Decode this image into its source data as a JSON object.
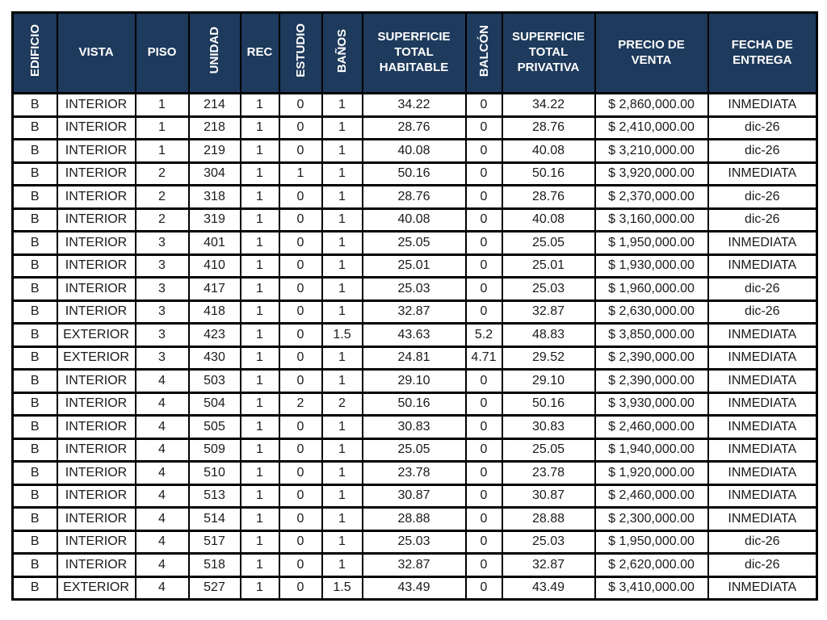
{
  "colors": {
    "header_background": "#1e3a5c",
    "header_text": "#ffffff",
    "grid_border": "#000000",
    "cell_background": "#ffffff",
    "cell_text": "#1a1a1a"
  },
  "table": {
    "columns": [
      {
        "id": "edificio",
        "label": "EDIFICIO",
        "vertical": true
      },
      {
        "id": "vista",
        "label": "VISTA",
        "vertical": false
      },
      {
        "id": "piso",
        "label": "PISO",
        "vertical": false
      },
      {
        "id": "unidad",
        "label": "UNIDAD",
        "vertical": true
      },
      {
        "id": "rec",
        "label": "REC",
        "vertical": false
      },
      {
        "id": "estudio",
        "label": "ESTUDIO",
        "vertical": true
      },
      {
        "id": "banos",
        "label": "BAÑOS",
        "vertical": true
      },
      {
        "id": "superficie-total-habitable",
        "label": "SUPERFICIE TOTAL HABITABLE",
        "vertical": false
      },
      {
        "id": "balcon",
        "label": "BALCÓN",
        "vertical": true
      },
      {
        "id": "superficie-total-privativa",
        "label": "SUPERFICIE TOTAL PRIVATIVA",
        "vertical": false
      },
      {
        "id": "precio-de-venta",
        "label": "PRECIO DE VENTA",
        "vertical": false
      },
      {
        "id": "fecha-de-entrega",
        "label": "FECHA DE ENTREGA",
        "vertical": false
      }
    ],
    "rows": [
      [
        "B",
        "INTERIOR",
        "1",
        "214",
        "1",
        "0",
        "1",
        "34.22",
        "0",
        "34.22",
        "$ 2,860,000.00",
        "INMEDIATA"
      ],
      [
        "B",
        "INTERIOR",
        "1",
        "218",
        "1",
        "0",
        "1",
        "28.76",
        "0",
        "28.76",
        "$ 2,410,000.00",
        "dic-26"
      ],
      [
        "B",
        "INTERIOR",
        "1",
        "219",
        "1",
        "0",
        "1",
        "40.08",
        "0",
        "40.08",
        "$ 3,210,000.00",
        "dic-26"
      ],
      [
        "B",
        "INTERIOR",
        "2",
        "304",
        "1",
        "1",
        "1",
        "50.16",
        "0",
        "50.16",
        "$ 3,920,000.00",
        "INMEDIATA"
      ],
      [
        "B",
        "INTERIOR",
        "2",
        "318",
        "1",
        "0",
        "1",
        "28.76",
        "0",
        "28.76",
        "$ 2,370,000.00",
        "dic-26"
      ],
      [
        "B",
        "INTERIOR",
        "2",
        "319",
        "1",
        "0",
        "1",
        "40.08",
        "0",
        "40.08",
        "$ 3,160,000.00",
        "dic-26"
      ],
      [
        "B",
        "INTERIOR",
        "3",
        "401",
        "1",
        "0",
        "1",
        "25.05",
        "0",
        "25.05",
        "$ 1,950,000.00",
        "INMEDIATA"
      ],
      [
        "B",
        "INTERIOR",
        "3",
        "410",
        "1",
        "0",
        "1",
        "25.01",
        "0",
        "25.01",
        "$ 1,930,000.00",
        "INMEDIATA"
      ],
      [
        "B",
        "INTERIOR",
        "3",
        "417",
        "1",
        "0",
        "1",
        "25.03",
        "0",
        "25.03",
        "$ 1,960,000.00",
        "dic-26"
      ],
      [
        "B",
        "INTERIOR",
        "3",
        "418",
        "1",
        "0",
        "1",
        "32.87",
        "0",
        "32.87",
        "$ 2,630,000.00",
        "dic-26"
      ],
      [
        "B",
        "EXTERIOR",
        "3",
        "423",
        "1",
        "0",
        "1.5",
        "43.63",
        "5.2",
        "48.83",
        "$ 3,850,000.00",
        "INMEDIATA"
      ],
      [
        "B",
        "EXTERIOR",
        "3",
        "430",
        "1",
        "0",
        "1",
        "24.81",
        "4.71",
        "29.52",
        "$ 2,390,000.00",
        "INMEDIATA"
      ],
      [
        "B",
        "INTERIOR",
        "4",
        "503",
        "1",
        "0",
        "1",
        "29.10",
        "0",
        "29.10",
        "$ 2,390,000.00",
        "INMEDIATA"
      ],
      [
        "B",
        "INTERIOR",
        "4",
        "504",
        "1",
        "2",
        "2",
        "50.16",
        "0",
        "50.16",
        "$ 3,930,000.00",
        "INMEDIATA"
      ],
      [
        "B",
        "INTERIOR",
        "4",
        "505",
        "1",
        "0",
        "1",
        "30.83",
        "0",
        "30.83",
        "$ 2,460,000.00",
        "INMEDIATA"
      ],
      [
        "B",
        "INTERIOR",
        "4",
        "509",
        "1",
        "0",
        "1",
        "25.05",
        "0",
        "25.05",
        "$ 1,940,000.00",
        "INMEDIATA"
      ],
      [
        "B",
        "INTERIOR",
        "4",
        "510",
        "1",
        "0",
        "1",
        "23.78",
        "0",
        "23.78",
        "$ 1,920,000.00",
        "INMEDIATA"
      ],
      [
        "B",
        "INTERIOR",
        "4",
        "513",
        "1",
        "0",
        "1",
        "30.87",
        "0",
        "30.87",
        "$ 2,460,000.00",
        "INMEDIATA"
      ],
      [
        "B",
        "INTERIOR",
        "4",
        "514",
        "1",
        "0",
        "1",
        "28.88",
        "0",
        "28.88",
        "$ 2,300,000.00",
        "INMEDIATA"
      ],
      [
        "B",
        "INTERIOR",
        "4",
        "517",
        "1",
        "0",
        "1",
        "25.03",
        "0",
        "25.03",
        "$ 1,950,000.00",
        "dic-26"
      ],
      [
        "B",
        "INTERIOR",
        "4",
        "518",
        "1",
        "0",
        "1",
        "32.87",
        "0",
        "32.87",
        "$ 2,620,000.00",
        "dic-26"
      ],
      [
        "B",
        "EXTERIOR",
        "4",
        "527",
        "1",
        "0",
        "1.5",
        "43.49",
        "0",
        "43.49",
        "$ 3,410,000.00",
        "INMEDIATA"
      ]
    ]
  }
}
